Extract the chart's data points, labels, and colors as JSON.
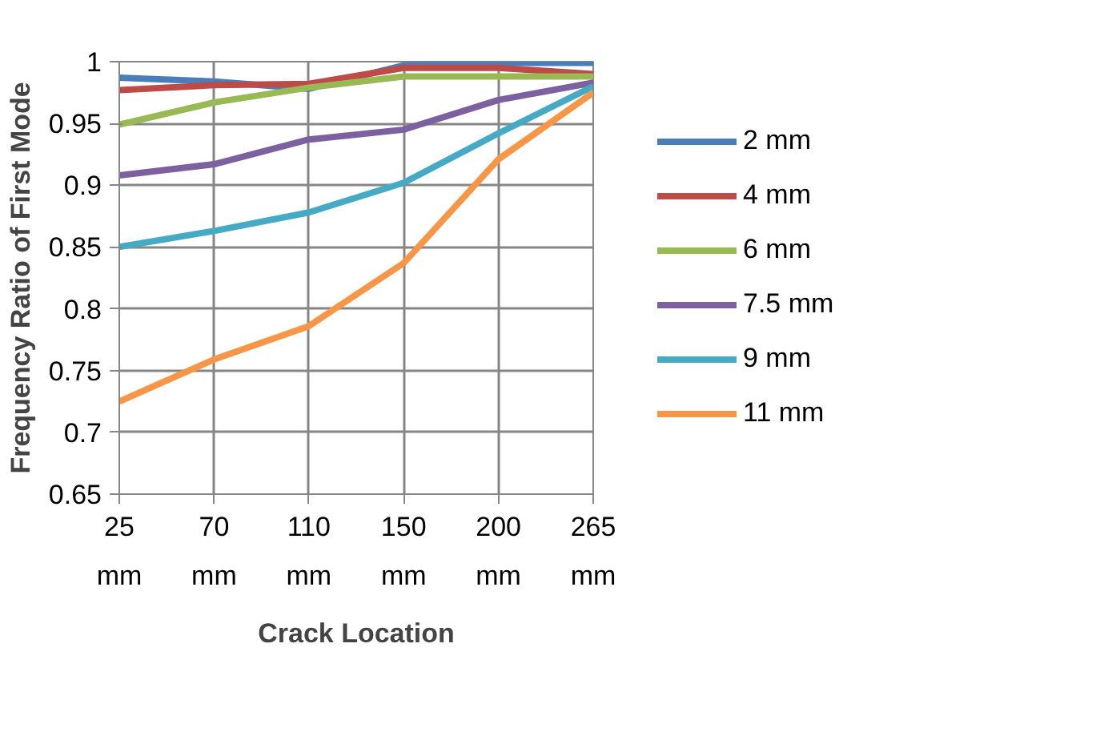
{
  "chart_data": {
    "type": "line",
    "xlabel": "Crack Location",
    "ylabel": "Frequency Ratio of First Mode",
    "categories": [
      "25 mm",
      "70 mm",
      "110 mm",
      "150 mm",
      "200 mm",
      "265 mm"
    ],
    "ylim": [
      0.65,
      1
    ],
    "yticks": [
      0.65,
      0.7,
      0.75,
      0.8,
      0.85,
      0.9,
      0.95,
      1
    ],
    "grid": true,
    "legend": "right",
    "marker": "none",
    "line_style": "solid",
    "series": [
      {
        "name": "2 mm",
        "color": "#4a7ebb",
        "values": [
          0.987,
          0.984,
          0.978,
          0.997,
          0.999,
          0.999
        ]
      },
      {
        "name": "4 mm",
        "color": "#be4b48",
        "values": [
          0.977,
          0.981,
          0.982,
          0.995,
          0.995,
          0.99
        ]
      },
      {
        "name": "6 mm",
        "color": "#98b954",
        "values": [
          0.949,
          0.967,
          0.979,
          0.988,
          0.988,
          0.988
        ]
      },
      {
        "name": "7.5 mm",
        "color": "#7d60a0",
        "values": [
          0.908,
          0.917,
          0.937,
          0.945,
          0.969,
          0.983
        ]
      },
      {
        "name": "9 mm",
        "color": "#46aac5",
        "values": [
          0.85,
          0.863,
          0.878,
          0.902,
          0.942,
          0.98
        ]
      },
      {
        "name": "11 mm",
        "color": "#f79646",
        "values": [
          0.725,
          0.759,
          0.786,
          0.837,
          0.921,
          0.975
        ]
      }
    ]
  }
}
